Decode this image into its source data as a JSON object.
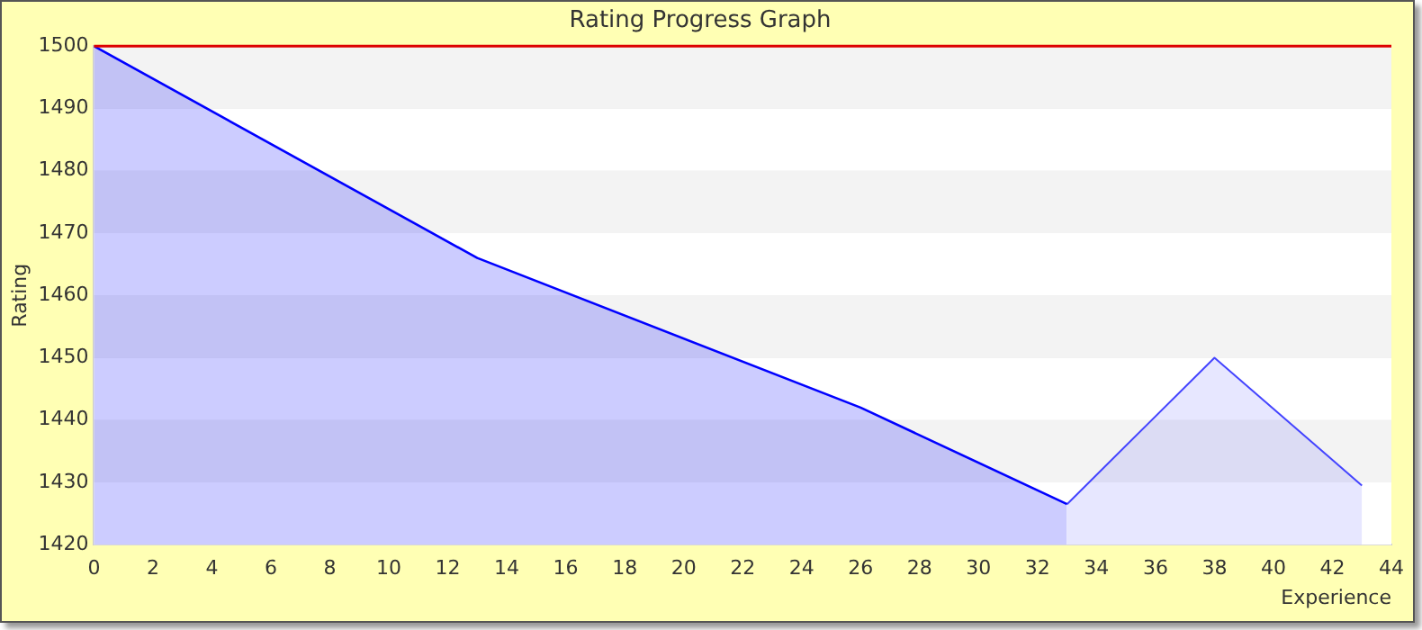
{
  "chart_data": {
    "type": "area",
    "title": "Rating Progress Graph",
    "xlabel": "Experience",
    "ylabel": "Rating",
    "series": [
      {
        "x": [
          0,
          13,
          26,
          33
        ],
        "values": [
          1500,
          1466,
          1442,
          1426.5
        ],
        "color": "#0000ff"
      },
      {
        "x": [
          33,
          38,
          43
        ],
        "values": [
          1426.5,
          1450,
          1429.5
        ],
        "color": "#4444ff"
      }
    ],
    "xlim": [
      0,
      44
    ],
    "xticks": [
      0,
      2,
      4,
      6,
      8,
      10,
      12,
      14,
      16,
      18,
      20,
      22,
      24,
      26,
      28,
      30,
      32,
      34,
      36,
      38,
      40,
      42,
      44
    ],
    "ylim": [
      1420,
      1500
    ],
    "yticks": [
      1420,
      1430,
      1440,
      1450,
      1460,
      1470,
      1480,
      1490,
      1500
    ],
    "ref_lines": [
      {
        "axis": "y",
        "value": 1500,
        "color": "#dd0000"
      }
    ],
    "grid": "y",
    "legend": false,
    "marker": "none"
  }
}
